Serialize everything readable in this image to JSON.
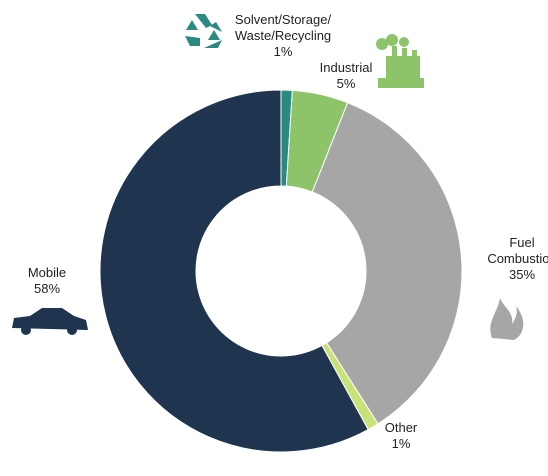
{
  "chart_data": {
    "type": "donut",
    "categories": [
      "Solvent/Storage/Waste/Recycling",
      "Industrial",
      "Fuel Combustion",
      "Other",
      "Mobile"
    ],
    "values": [
      1,
      5,
      35,
      1,
      58
    ],
    "value_labels": [
      "1%",
      "5%",
      "35%",
      "1%",
      "58%"
    ],
    "colors": [
      "#2a8a80",
      "#8dc46a",
      "#a6a6a6",
      "#c8e27a",
      "#1f344f"
    ]
  }
}
